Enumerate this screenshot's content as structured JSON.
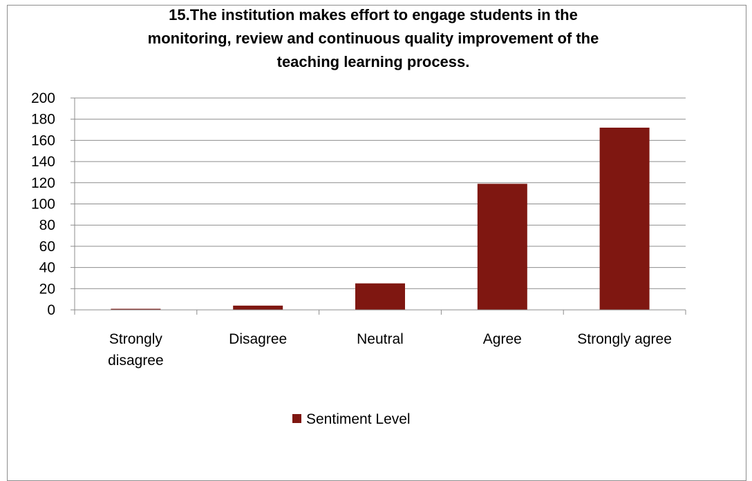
{
  "chart_data": {
    "type": "bar",
    "title": "15.The institution makes effort to engage students in the monitoring, review and continuous quality improvement of the teaching learning process.",
    "title_lines": [
      "15.The institution makes effort to engage students in the",
      "monitoring, review and continuous quality improvement of the",
      "teaching learning process."
    ],
    "categories": [
      "Strongly disagree",
      "Disagree",
      "Neutral",
      "Agree",
      "Strongly agree"
    ],
    "category_lines": [
      [
        "Strongly",
        "disagree"
      ],
      [
        "Disagree"
      ],
      [
        "Neutral"
      ],
      [
        "Agree"
      ],
      [
        "Strongly agree"
      ]
    ],
    "series": [
      {
        "name": "Sentiment Level",
        "values": [
          1,
          4,
          25,
          119,
          172
        ],
        "color": "#7f1711"
      }
    ],
    "xlabel": "",
    "ylabel": "",
    "ylim": [
      0,
      200
    ],
    "y_ticks": [
      0,
      20,
      40,
      60,
      80,
      100,
      120,
      140,
      160,
      180,
      200
    ],
    "grid": true,
    "legend_position": "bottom"
  }
}
